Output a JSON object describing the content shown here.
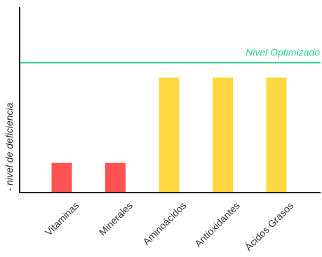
{
  "chart_data": {
    "type": "bar",
    "categories": [
      "Vitaminas",
      "Minerales",
      "Aminoácidos",
      "Antioxidantes",
      "Ácidos Grasos"
    ],
    "values": [
      1.6,
      1.6,
      6.2,
      6.2,
      6.2
    ],
    "colors": [
      "#ff5252",
      "#ff5252",
      "#ffd740",
      "#ffd740",
      "#ffd740"
    ],
    "ylabel": "- nivel de deficiencia",
    "ylim": [
      0,
      10
    ],
    "grid": false,
    "reference_line": {
      "label": "Nivel Optimizado",
      "value": 7.0,
      "color": "#2ecc8f"
    }
  }
}
